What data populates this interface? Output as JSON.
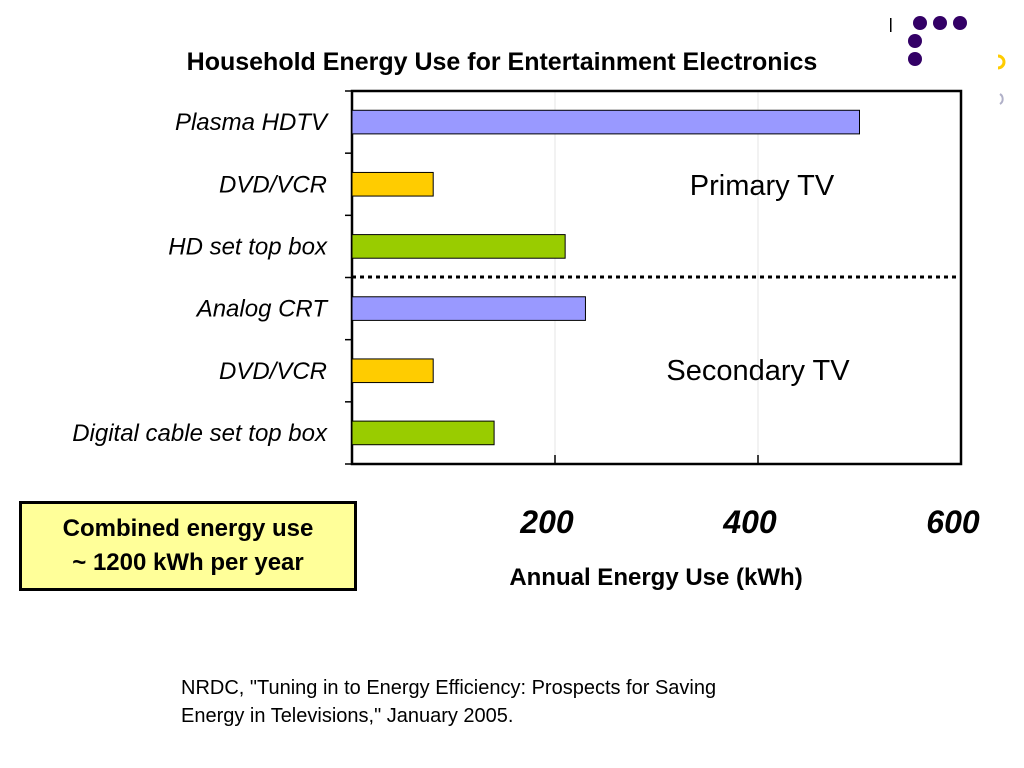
{
  "chart_data": {
    "type": "bar",
    "orientation": "horizontal",
    "title": "Household Energy Use for Entertainment Electronics",
    "xlabel": "Annual Energy Use (kWh)",
    "ylabel": "",
    "categories": [
      "Plasma HDTV",
      "DVD/VCR",
      "HD set top box",
      "Analog CRT",
      "DVD/VCR",
      "Digital cable set top box"
    ],
    "values": [
      500,
      80,
      210,
      230,
      80,
      140
    ],
    "bar_colors": [
      "#9999ff",
      "#ffcc00",
      "#99cc00",
      "#9999ff",
      "#ffcc00",
      "#99cc00"
    ],
    "xlim": [
      0,
      600
    ],
    "x_ticks": [
      200,
      400,
      600
    ],
    "grid": "vertical lines at 200 and 400",
    "legend": "none",
    "groups": [
      {
        "label": "Primary TV",
        "categories": [
          "Plasma HDTV",
          "DVD/VCR",
          "HD set top box"
        ]
      },
      {
        "label": "Secondary TV",
        "categories": [
          "Analog CRT",
          "DVD/VCR",
          "Digital cable set top box"
        ]
      }
    ],
    "divider_style": "dotted line between groups"
  },
  "callout": {
    "line1": "Combined energy use",
    "line2": "~ 1200 kWh per year"
  },
  "source": {
    "line1": "NRDC, \"Tuning in to Energy Efficiency: Prospects for Saving",
    "line2": "Energy in Televisions,\" January 2005."
  },
  "colors": {
    "primary_bar": "#9999ff",
    "dvd_bar": "#ffcc00",
    "settop_bar": "#99cc00",
    "callout_bg": "#ffff99",
    "decor_purple": "#330066",
    "decor_yellow": "#ffcc00"
  }
}
